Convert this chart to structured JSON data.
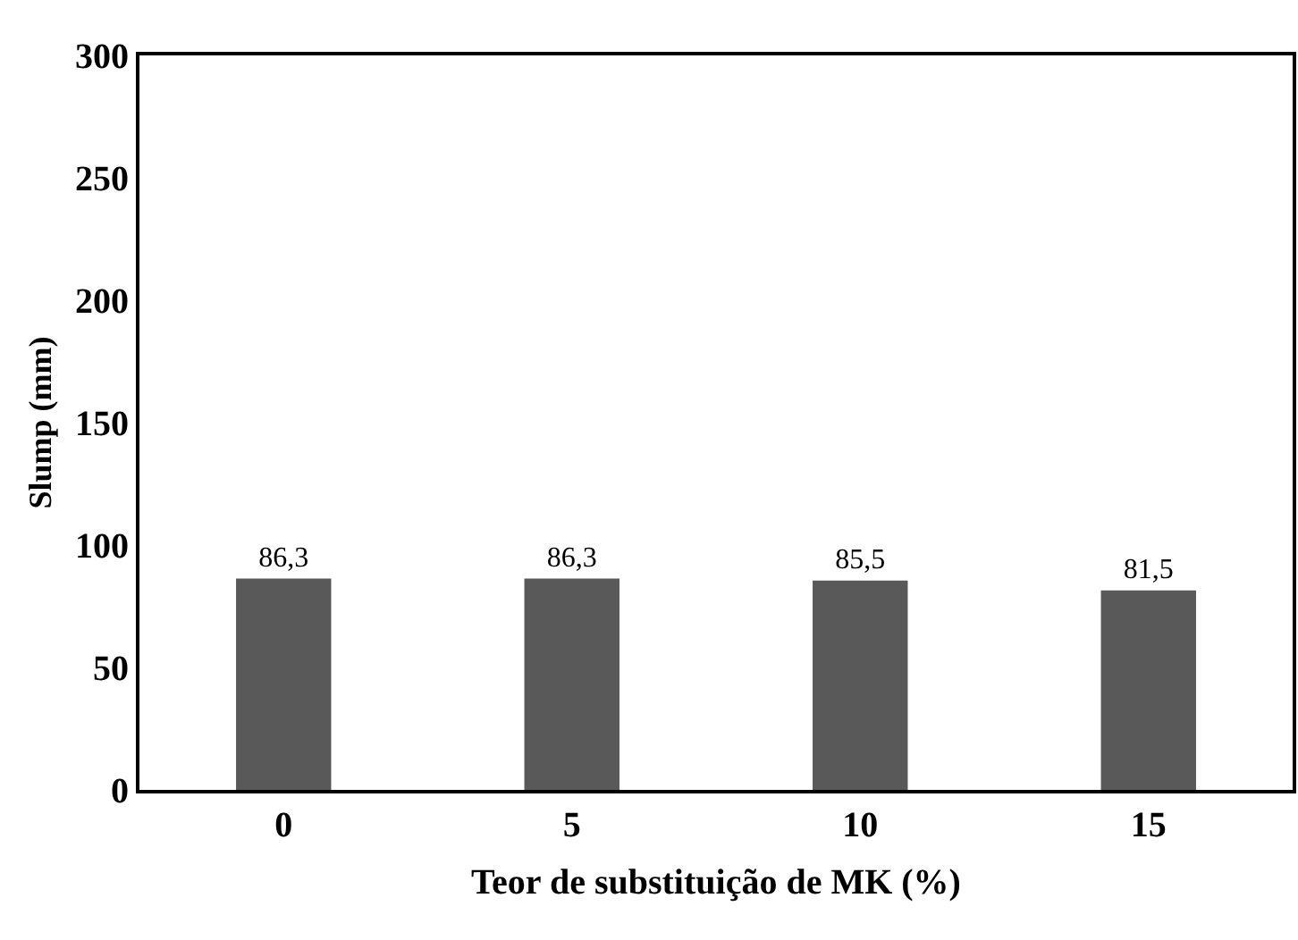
{
  "chart_data": {
    "type": "bar",
    "xlabel": "Teor de substituição de MK (%)",
    "ylabel": "Slump (mm)",
    "categories": [
      "0",
      "5",
      "10",
      "15"
    ],
    "values": [
      86.3,
      86.3,
      85.5,
      81.5
    ],
    "value_labels": [
      "86,3",
      "86,3",
      "85,5",
      "81,5"
    ],
    "color": "#595959",
    "ylim": [
      0,
      300
    ],
    "yticks": [
      0,
      50,
      100,
      150,
      200,
      250,
      300
    ]
  }
}
